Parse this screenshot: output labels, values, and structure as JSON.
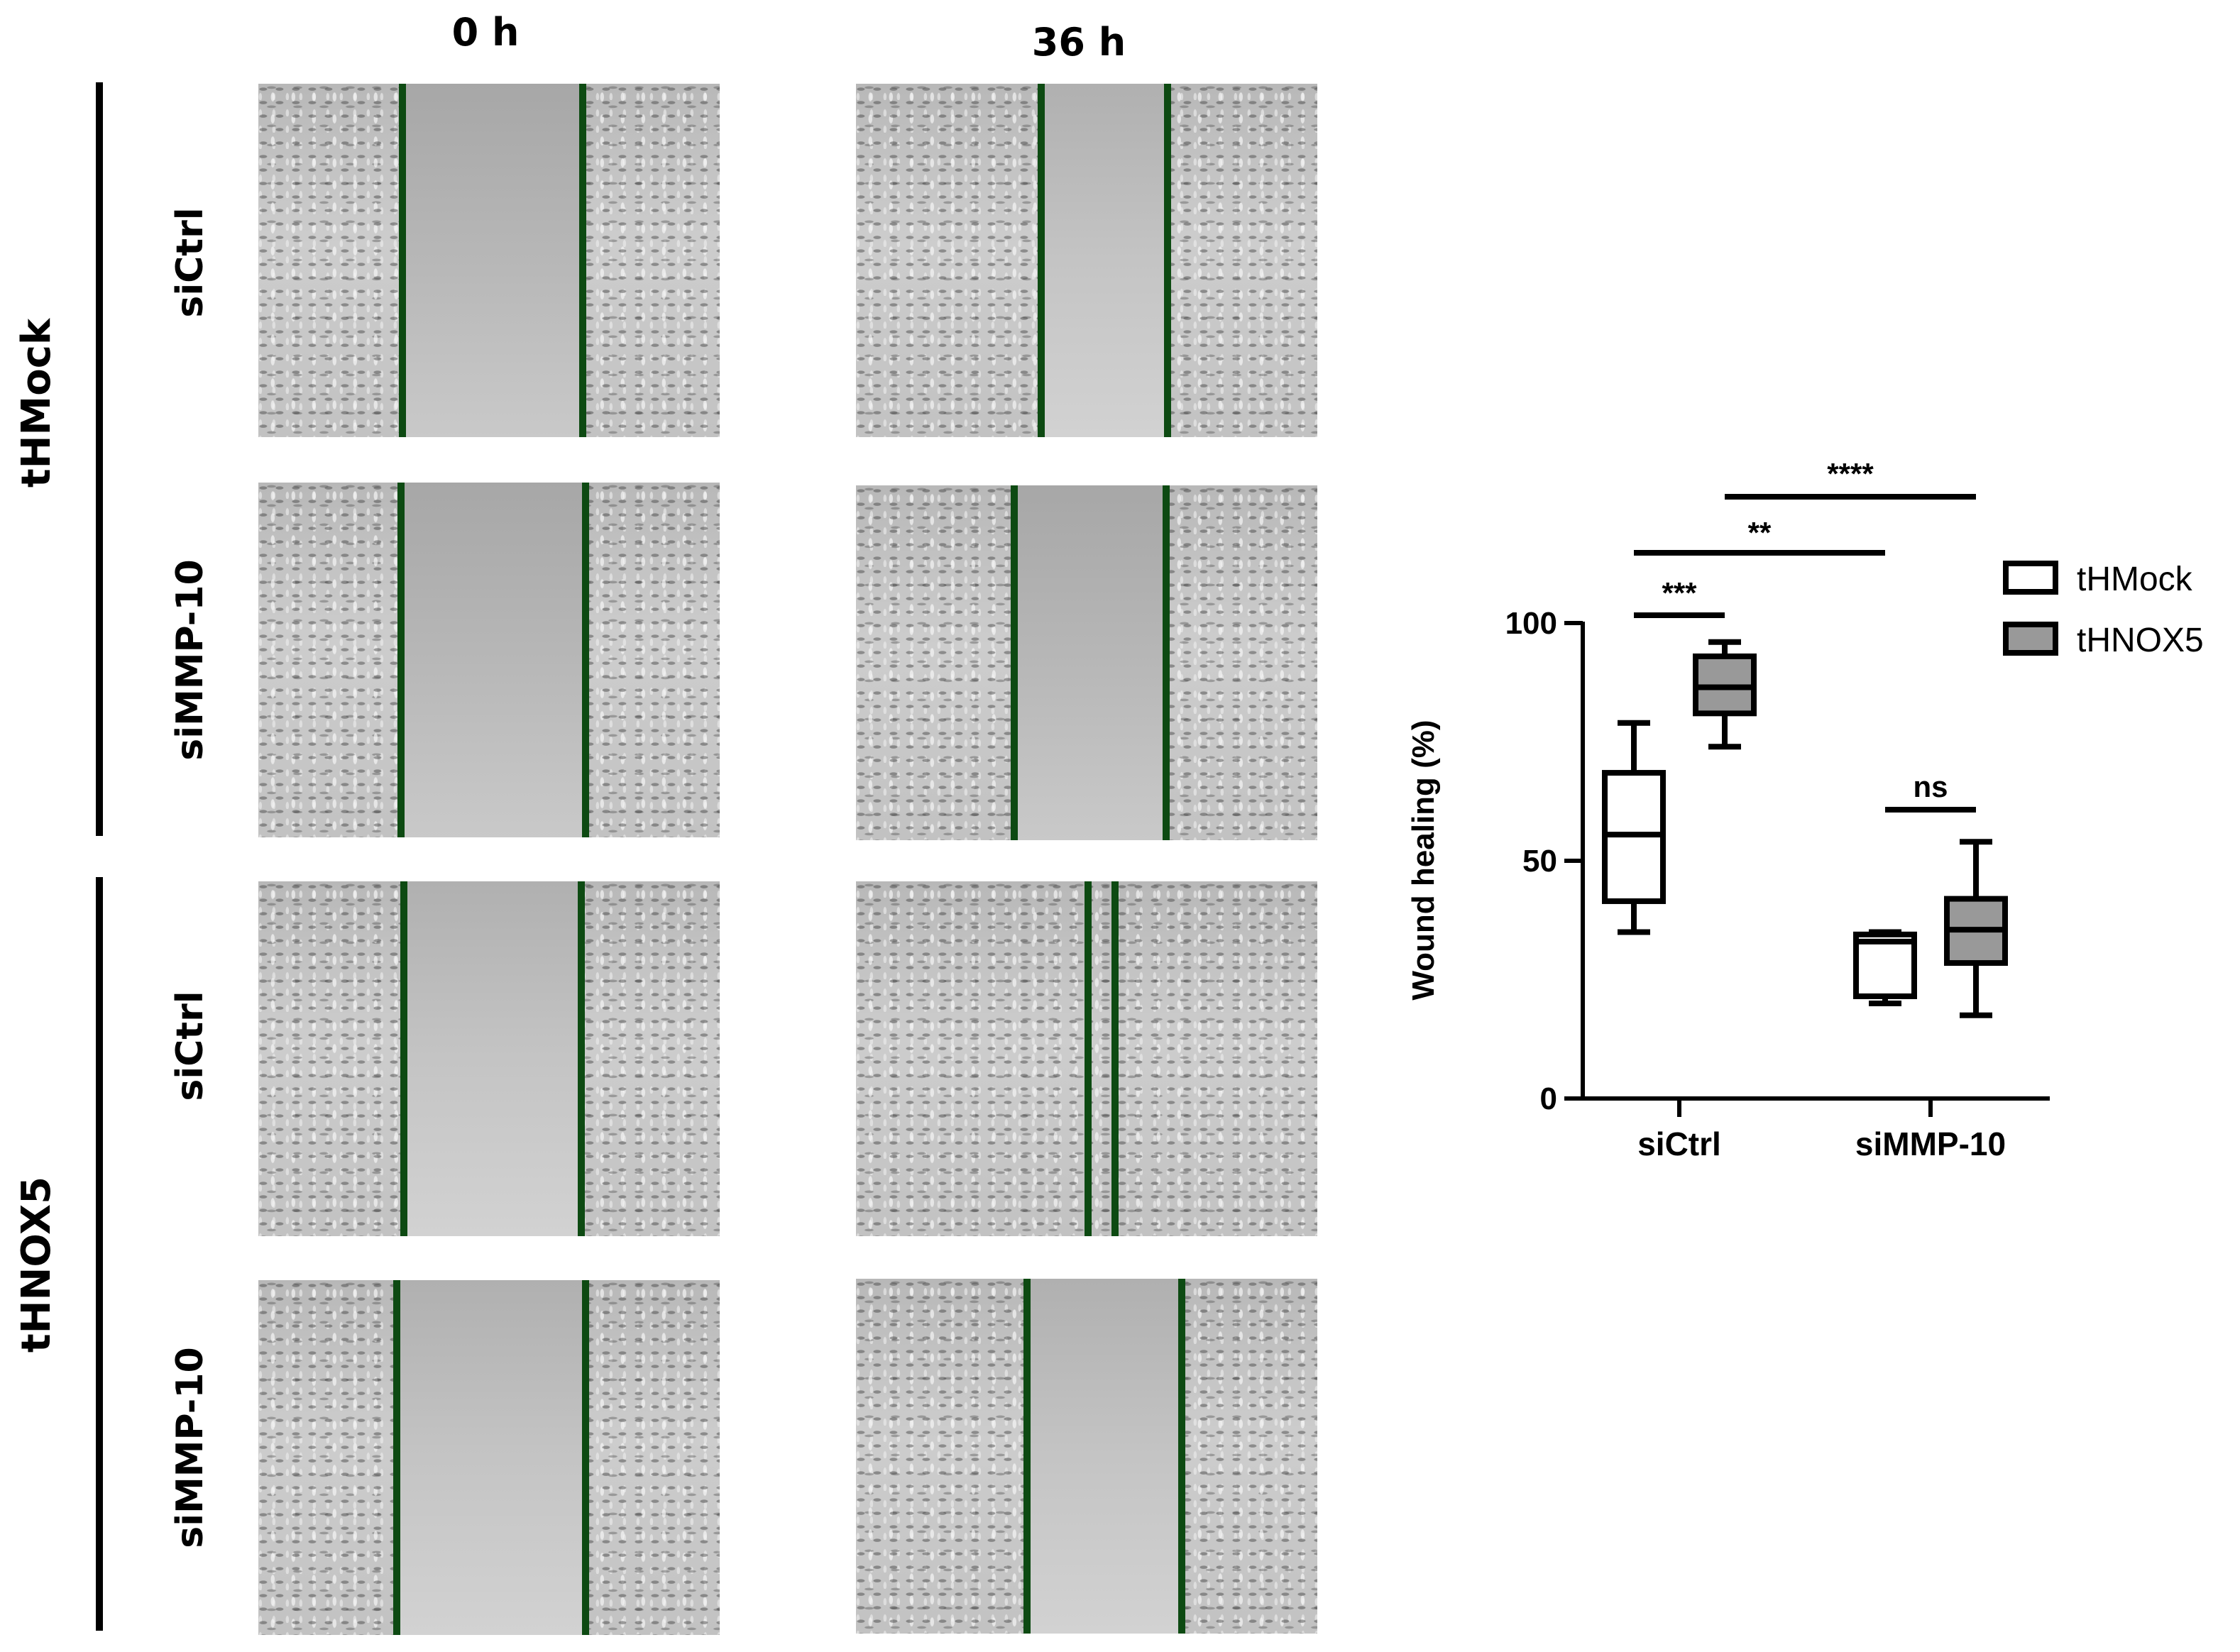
{
  "figure": {
    "column_headers": [
      "0 h",
      "36 h"
    ],
    "groups": [
      {
        "label": "tHMock",
        "rows": [
          "siCtrl",
          "siMMP-10"
        ]
      },
      {
        "label": "tHNOX5",
        "rows": [
          "siCtrl",
          "siMMP-10"
        ]
      }
    ]
  },
  "colors": {
    "wound_edge_line": "#0d4a12",
    "tHMock_box": "#ffffff",
    "tHNOX5_box": "#999999",
    "ink": "#000000"
  },
  "chart_data": {
    "type": "box",
    "ylabel": "Wound healing (%)",
    "xlabel": "",
    "ylim": [
      0,
      120
    ],
    "yticks": [
      0,
      50,
      100
    ],
    "categories": [
      "siCtrl",
      "siMMP-10"
    ],
    "legend": {
      "position": "top-right"
    },
    "series": [
      {
        "name": "tHMock",
        "color": "#ffffff",
        "boxes": [
          {
            "category": "siCtrl",
            "min": 35,
            "q1": 41.5,
            "median": 55.5,
            "q3": 68.5,
            "max": 79
          },
          {
            "category": "siMMP-10",
            "min": 20,
            "q1": 21.5,
            "median": 33,
            "q3": 34.5,
            "max": 35
          }
        ]
      },
      {
        "name": "tHNOX5",
        "color": "#999999",
        "boxes": [
          {
            "category": "siCtrl",
            "min": 74,
            "q1": 81,
            "median": 86.5,
            "q3": 93,
            "max": 96
          },
          {
            "category": "siMMP-10",
            "min": 17.5,
            "q1": 28.5,
            "median": 35.5,
            "q3": 42,
            "max": 54
          }
        ]
      }
    ],
    "annotations": [
      {
        "label": "***",
        "from": "siCtrl/tHMock",
        "to": "siCtrl/tHNOX5"
      },
      {
        "label": "ns",
        "from": "siMMP-10/tHMock",
        "to": "siMMP-10/tHNOX5"
      },
      {
        "label": "**",
        "from": "siCtrl/tHMock",
        "to": "siMMP-10/tHMock"
      },
      {
        "label": "****",
        "from": "siCtrl/tHNOX5",
        "to": "siMMP-10/tHNOX5"
      }
    ]
  }
}
